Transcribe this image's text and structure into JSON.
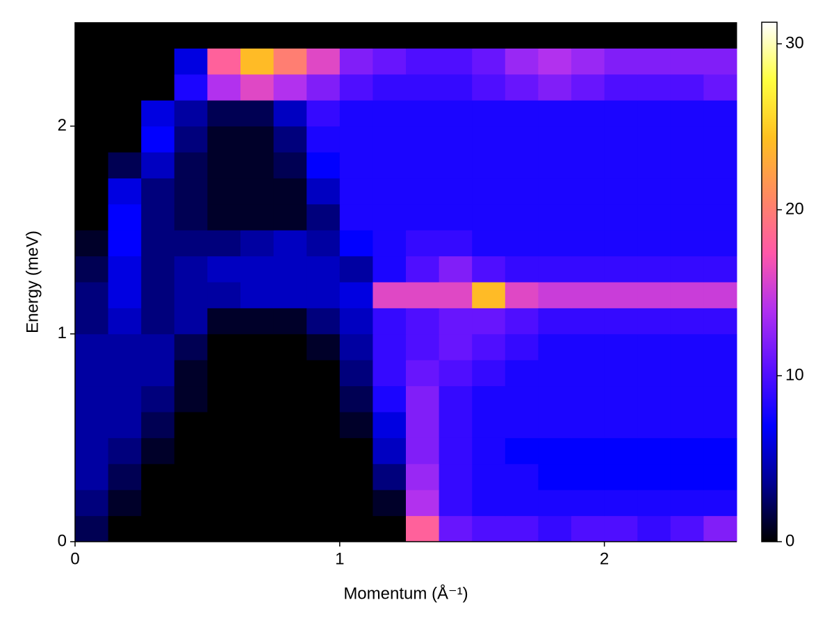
{
  "chart_data": {
    "type": "heatmap",
    "xlabel": "Momentum (Å⁻¹)",
    "ylabel": "Energy (meV)",
    "xlim": [
      0,
      2.5
    ],
    "xticks": [
      0,
      1,
      2
    ],
    "ylim": [
      0,
      2.5
    ],
    "yticks": [
      0,
      1,
      2
    ],
    "zlim": [
      0,
      31.3
    ],
    "zticks": [
      0,
      10,
      20,
      30
    ],
    "colormap": [
      "#000000",
      "#000090",
      "#0000ff",
      "#5a10ff",
      "#b030f0",
      "#ff58a8",
      "#ff8a60",
      "#ffc020",
      "#ffff40",
      "#ffffff"
    ],
    "xbins": [
      0,
      0.125,
      0.25,
      0.375,
      0.5,
      0.625,
      0.75,
      0.875,
      1,
      1.125,
      1.25,
      1.375,
      1.5,
      1.625,
      1.75,
      1.875,
      2,
      2.125,
      2.25,
      2.375,
      2.5
    ],
    "ybins": [
      0,
      0.125,
      0.25,
      0.375,
      0.5,
      0.625,
      0.75,
      0.875,
      1,
      1.125,
      1.25,
      1.375,
      1.5,
      1.625,
      1.75,
      1.875,
      2,
      2.125,
      2.25,
      2.375,
      2.5
    ],
    "z": [
      [
        2,
        0,
        0,
        0,
        0,
        0,
        0,
        0,
        0,
        0,
        18,
        11,
        10,
        10,
        9,
        10,
        10,
        9,
        10,
        12
      ],
      [
        3,
        1,
        0,
        0,
        0,
        0,
        0,
        0,
        0,
        1,
        14,
        9,
        8,
        8,
        8,
        8,
        8,
        8,
        8,
        8
      ],
      [
        4,
        2,
        0,
        0,
        0,
        0,
        0,
        0,
        0,
        3,
        13,
        9,
        8,
        8,
        7,
        7,
        7,
        7,
        7,
        7
      ],
      [
        4,
        3,
        1,
        0,
        0,
        0,
        0,
        0,
        0,
        5,
        12,
        9,
        8,
        7,
        7,
        7,
        7,
        7,
        7,
        7
      ],
      [
        4,
        4,
        2,
        0,
        0,
        0,
        0,
        0,
        1,
        6,
        12,
        9,
        8,
        8,
        8,
        8,
        8,
        8,
        8,
        8
      ],
      [
        4,
        4,
        3,
        1,
        0,
        0,
        0,
        0,
        2,
        8,
        12,
        9,
        8,
        8,
        8,
        8,
        8,
        8,
        8,
        8
      ],
      [
        4,
        4,
        4,
        1,
        0,
        0,
        0,
        0,
        3,
        9,
        11,
        10,
        9,
        8,
        8,
        8,
        8,
        8,
        8,
        8
      ],
      [
        4,
        4,
        4,
        2,
        0,
        0,
        0,
        1,
        4,
        9,
        10,
        11,
        10,
        9,
        8,
        8,
        8,
        8,
        8,
        8
      ],
      [
        3,
        5,
        3,
        4,
        1,
        1,
        1,
        3,
        5,
        9,
        10,
        11,
        11,
        10,
        9,
        9,
        9,
        9,
        9,
        9
      ],
      [
        3,
        6,
        3,
        4,
        4,
        5,
        5,
        5,
        6,
        16,
        16,
        16,
        24,
        16,
        15,
        15,
        15,
        15,
        15,
        15
      ],
      [
        2,
        6,
        3,
        4,
        5,
        5,
        5,
        5,
        4,
        8,
        10,
        12,
        10,
        9,
        9,
        9,
        9,
        9,
        9,
        9
      ],
      [
        1,
        7,
        3,
        3,
        3,
        4,
        5,
        4,
        7,
        8,
        9,
        9,
        8,
        8,
        8,
        8,
        8,
        8,
        8,
        8
      ],
      [
        0,
        7,
        3,
        2,
        1,
        1,
        1,
        3,
        8,
        8,
        8,
        8,
        8,
        8,
        8,
        8,
        8,
        8,
        8,
        8
      ],
      [
        0,
        6,
        3,
        2,
        1,
        1,
        1,
        5,
        8,
        8,
        8,
        8,
        8,
        8,
        8,
        8,
        8,
        8,
        8,
        8
      ],
      [
        0,
        2,
        5,
        2,
        1,
        1,
        2,
        7,
        8,
        8,
        8,
        8,
        8,
        8,
        8,
        8,
        8,
        8,
        8,
        8
      ],
      [
        0,
        0,
        7,
        3,
        1,
        1,
        3,
        8,
        8,
        8,
        8,
        8,
        8,
        8,
        8,
        8,
        8,
        8,
        8,
        8
      ],
      [
        0,
        0,
        6,
        4,
        2,
        2,
        5,
        9,
        8,
        8,
        8,
        8,
        8,
        8,
        8,
        8,
        8,
        8,
        8,
        8
      ],
      [
        0,
        0,
        0,
        8,
        14,
        16,
        14,
        12,
        10,
        9,
        9,
        9,
        10,
        11,
        12,
        11,
        10,
        10,
        10,
        11
      ],
      [
        0,
        0,
        0,
        6,
        18,
        24,
        20,
        16,
        12,
        11,
        10,
        10,
        11,
        13,
        14,
        13,
        12,
        12,
        12,
        12
      ],
      [
        0,
        0,
        0,
        0,
        0,
        0,
        0,
        0,
        0,
        0,
        0,
        0,
        0,
        0,
        0,
        0,
        0,
        0,
        0,
        0
      ]
    ]
  }
}
